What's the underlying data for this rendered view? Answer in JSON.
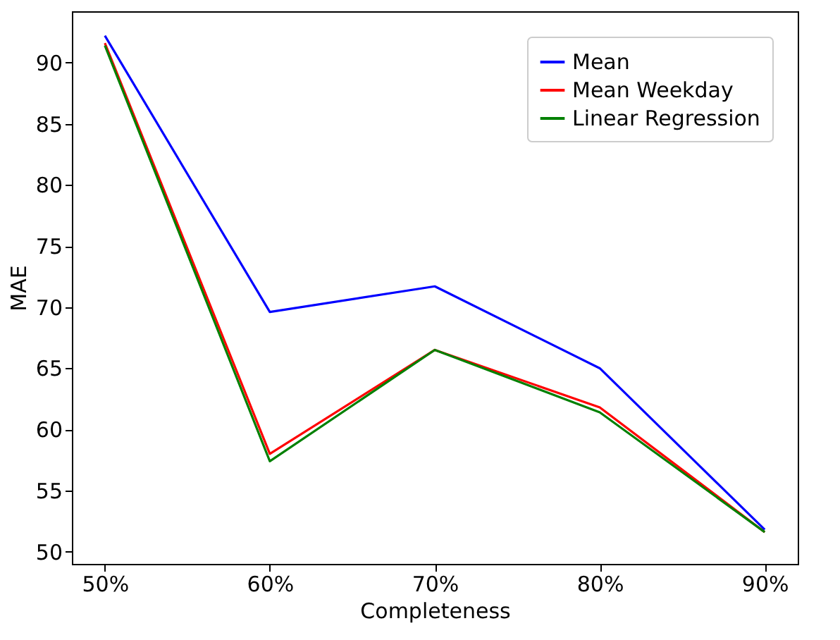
{
  "chart_data": {
    "type": "line",
    "xlabel": "Completeness",
    "ylabel": "MAE",
    "categories": [
      "50%",
      "60%",
      "70%",
      "80%",
      "90%"
    ],
    "series": [
      {
        "name": "Mean",
        "color": "#0000ff",
        "values": [
          92.2,
          69.6,
          71.7,
          65.0,
          51.8
        ]
      },
      {
        "name": "Mean Weekday",
        "color": "#ff0000",
        "values": [
          91.6,
          58.0,
          66.5,
          61.8,
          51.6
        ]
      },
      {
        "name": "Linear Regression",
        "color": "#008000",
        "values": [
          91.4,
          57.4,
          66.5,
          61.4,
          51.6
        ]
      }
    ],
    "ylim": [
      49.0,
      94.2
    ],
    "yticks": [
      50,
      55,
      60,
      65,
      70,
      75,
      80,
      85,
      90
    ],
    "grid": false,
    "legend": "top right",
    "marker": "none",
    "line_style": "solid"
  }
}
